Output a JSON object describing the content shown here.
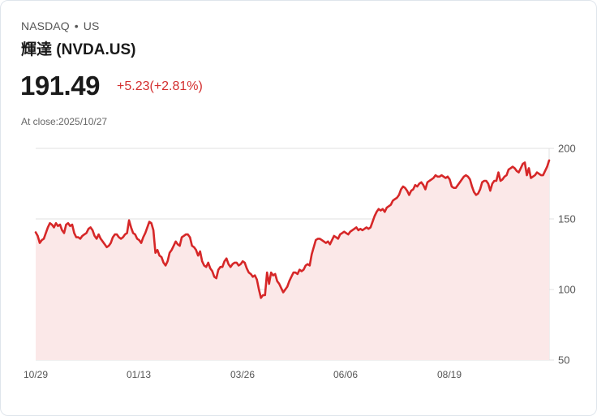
{
  "header": {
    "exchange": "NASDAQ",
    "separator": "•",
    "region": "US",
    "title": "輝達 (NVDA.US)",
    "price": "191.49",
    "change": "+5.23(+2.81%)",
    "close_label": "At close:2025/10/27"
  },
  "colors": {
    "line": "#d62728",
    "fill": "#fbe8e8",
    "grid": "#e0e0e0",
    "change_text": "#d32f2f"
  },
  "chart_data": {
    "type": "area",
    "title": "輝達 (NVDA.US)",
    "xlabel": "",
    "ylabel": "",
    "ylim": [
      50,
      200
    ],
    "yticks": [
      200,
      150,
      100,
      50
    ],
    "grid": true,
    "y_axis_position": "right",
    "x_tick_labels": [
      "10/29",
      "01/13",
      "03/26",
      "06/06",
      "08/19"
    ],
    "x_tick_index": [
      0,
      51,
      101,
      152,
      203
    ],
    "values": [
      140.5,
      138,
      133,
      135,
      136,
      140,
      144,
      147,
      146,
      144,
      147,
      145,
      146,
      142,
      140,
      146,
      147,
      145,
      146,
      140,
      137,
      137,
      136,
      138,
      139,
      140,
      143,
      144,
      142,
      138,
      136,
      139,
      136,
      134,
      132,
      130,
      131,
      133,
      137,
      139,
      139,
      137,
      136,
      137,
      139,
      140,
      149,
      144,
      140,
      139,
      136,
      135,
      133,
      137,
      140,
      144,
      148,
      147,
      142,
      126,
      128,
      124,
      123,
      119,
      117,
      120,
      126,
      128,
      131,
      134,
      132,
      131,
      137,
      138,
      139,
      139,
      137,
      131,
      130,
      128,
      124,
      127,
      120,
      117,
      116,
      119,
      115,
      113,
      109,
      108,
      114,
      116,
      116,
      120,
      122,
      118,
      116,
      118,
      119,
      119,
      117,
      118,
      120,
      119,
      115,
      112,
      111,
      109,
      110,
      107,
      100,
      94,
      96,
      96,
      112,
      104,
      112,
      110,
      111,
      106,
      104,
      101,
      98,
      100,
      102,
      106,
      109,
      112,
      112,
      111,
      114,
      113,
      114,
      117,
      118,
      117,
      125,
      130,
      135,
      136,
      136,
      135,
      134,
      133,
      134,
      132,
      135,
      138,
      137,
      136,
      139,
      140,
      141,
      140,
      139,
      141,
      142,
      143,
      144,
      142,
      143,
      142,
      143,
      144,
      143,
      144,
      148,
      152,
      155,
      157,
      156,
      157,
      155,
      158,
      159,
      160,
      163,
      164,
      165,
      167,
      171,
      173,
      172,
      170,
      167,
      170,
      171,
      174,
      173,
      175,
      176,
      174,
      171,
      176,
      177,
      178,
      179,
      181,
      180,
      180,
      181,
      180,
      179,
      180,
      178,
      173,
      172,
      172,
      174,
      176,
      178,
      180,
      181,
      180,
      178,
      173,
      169,
      167,
      168,
      171,
      176,
      177,
      177,
      175,
      170,
      175,
      177,
      177,
      183,
      177,
      178,
      180,
      181,
      185,
      186,
      187,
      186,
      184,
      183,
      186,
      189,
      190,
      181,
      186,
      179,
      180,
      181,
      183,
      182,
      181,
      181,
      184,
      187,
      191.5
    ]
  }
}
